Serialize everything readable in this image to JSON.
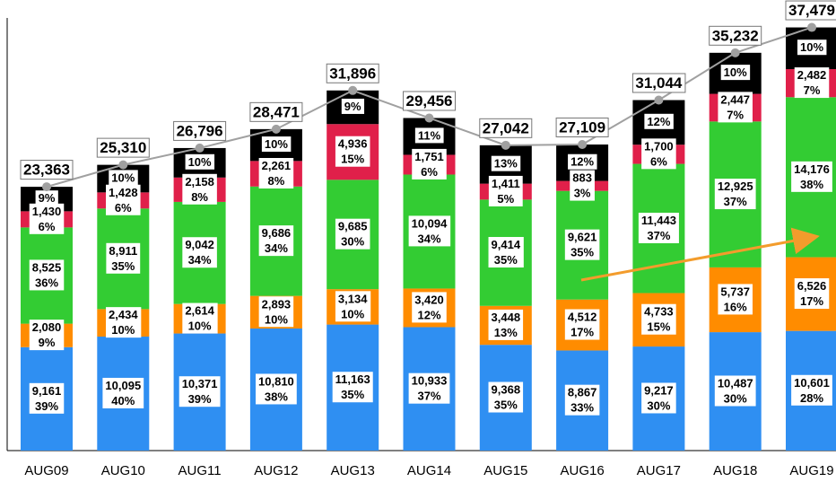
{
  "chart_data": {
    "type": "stacked-bar",
    "categories": [
      "AUG09",
      "AUG10",
      "AUG11",
      "AUG12",
      "AUG13",
      "AUG14",
      "AUG15",
      "AUG16",
      "AUG17",
      "AUG18",
      "AUG19"
    ],
    "ylim": [
      0,
      38000
    ],
    "series": [
      {
        "color": "#2f8ff2",
        "values": [
          9161,
          10095,
          10371,
          10810,
          11163,
          10933,
          9368,
          8867,
          9217,
          10487,
          10601
        ],
        "value_labels": [
          "9,161",
          "10,095",
          "10,371",
          "10,810",
          "11,163",
          "10,933",
          "9,368",
          "8,867",
          "9,217",
          "10,487",
          "10,601"
        ],
        "percent_labels": [
          "39%",
          "40%",
          "39%",
          "38%",
          "35%",
          "37%",
          "35%",
          "33%",
          "30%",
          "30%",
          "28%"
        ]
      },
      {
        "color": "#ff8c00",
        "values": [
          2080,
          2434,
          2614,
          2893,
          3134,
          3420,
          3448,
          4512,
          4733,
          5737,
          6526
        ],
        "value_labels": [
          "2,080",
          "2,434",
          "2,614",
          "2,893",
          "3,134",
          "3,420",
          "3,448",
          "4,512",
          "4,733",
          "5,737",
          "6,526"
        ],
        "percent_labels": [
          "9%",
          "10%",
          "10%",
          "10%",
          "10%",
          "12%",
          "13%",
          "17%",
          "15%",
          "16%",
          "17%"
        ]
      },
      {
        "color": "#33cc33",
        "values": [
          8525,
          8911,
          9042,
          9686,
          9685,
          10094,
          9414,
          9621,
          11443,
          12925,
          14176
        ],
        "value_labels": [
          "8,525",
          "8,911",
          "9,042",
          "9,686",
          "9,685",
          "10,094",
          "9,414",
          "9,621",
          "11,443",
          "12,925",
          "14,176"
        ],
        "percent_labels": [
          "36%",
          "35%",
          "34%",
          "34%",
          "30%",
          "34%",
          "35%",
          "35%",
          "37%",
          "37%",
          "38%"
        ]
      },
      {
        "color": "#e0204a",
        "values": [
          1430,
          1428,
          2158,
          2261,
          4936,
          1751,
          1411,
          883,
          1700,
          2447,
          2482
        ],
        "value_labels": [
          "1,430",
          "1,428",
          "2,158",
          "2,261",
          "4,936",
          "1,751",
          "1,411",
          "883",
          "1,700",
          "2,447",
          "2,482"
        ],
        "percent_labels": [
          "6%",
          "6%",
          "8%",
          "8%",
          "15%",
          "6%",
          "5%",
          "3%",
          "6%",
          "7%",
          "7%"
        ]
      },
      {
        "color": "#000000",
        "values": [
          2167,
          2442,
          2611,
          2821,
          2978,
          3258,
          3401,
          3226,
          3951,
          3636,
          3694
        ],
        "percent_labels": [
          "9%",
          "10%",
          "10%",
          "10%",
          "9%",
          "11%",
          "13%",
          "12%",
          "12%",
          "10%",
          "10%"
        ]
      }
    ],
    "totals": {
      "color": "#a0a0a0",
      "values": [
        23363,
        25310,
        26796,
        28471,
        31896,
        29456,
        27042,
        27109,
        31044,
        35232,
        37479
      ],
      "value_labels": [
        "23,363",
        "25,310",
        "26,796",
        "28,471",
        "31,896",
        "29,456",
        "27,042",
        "27,109",
        "31,044",
        "35,232",
        "37,479"
      ]
    }
  }
}
